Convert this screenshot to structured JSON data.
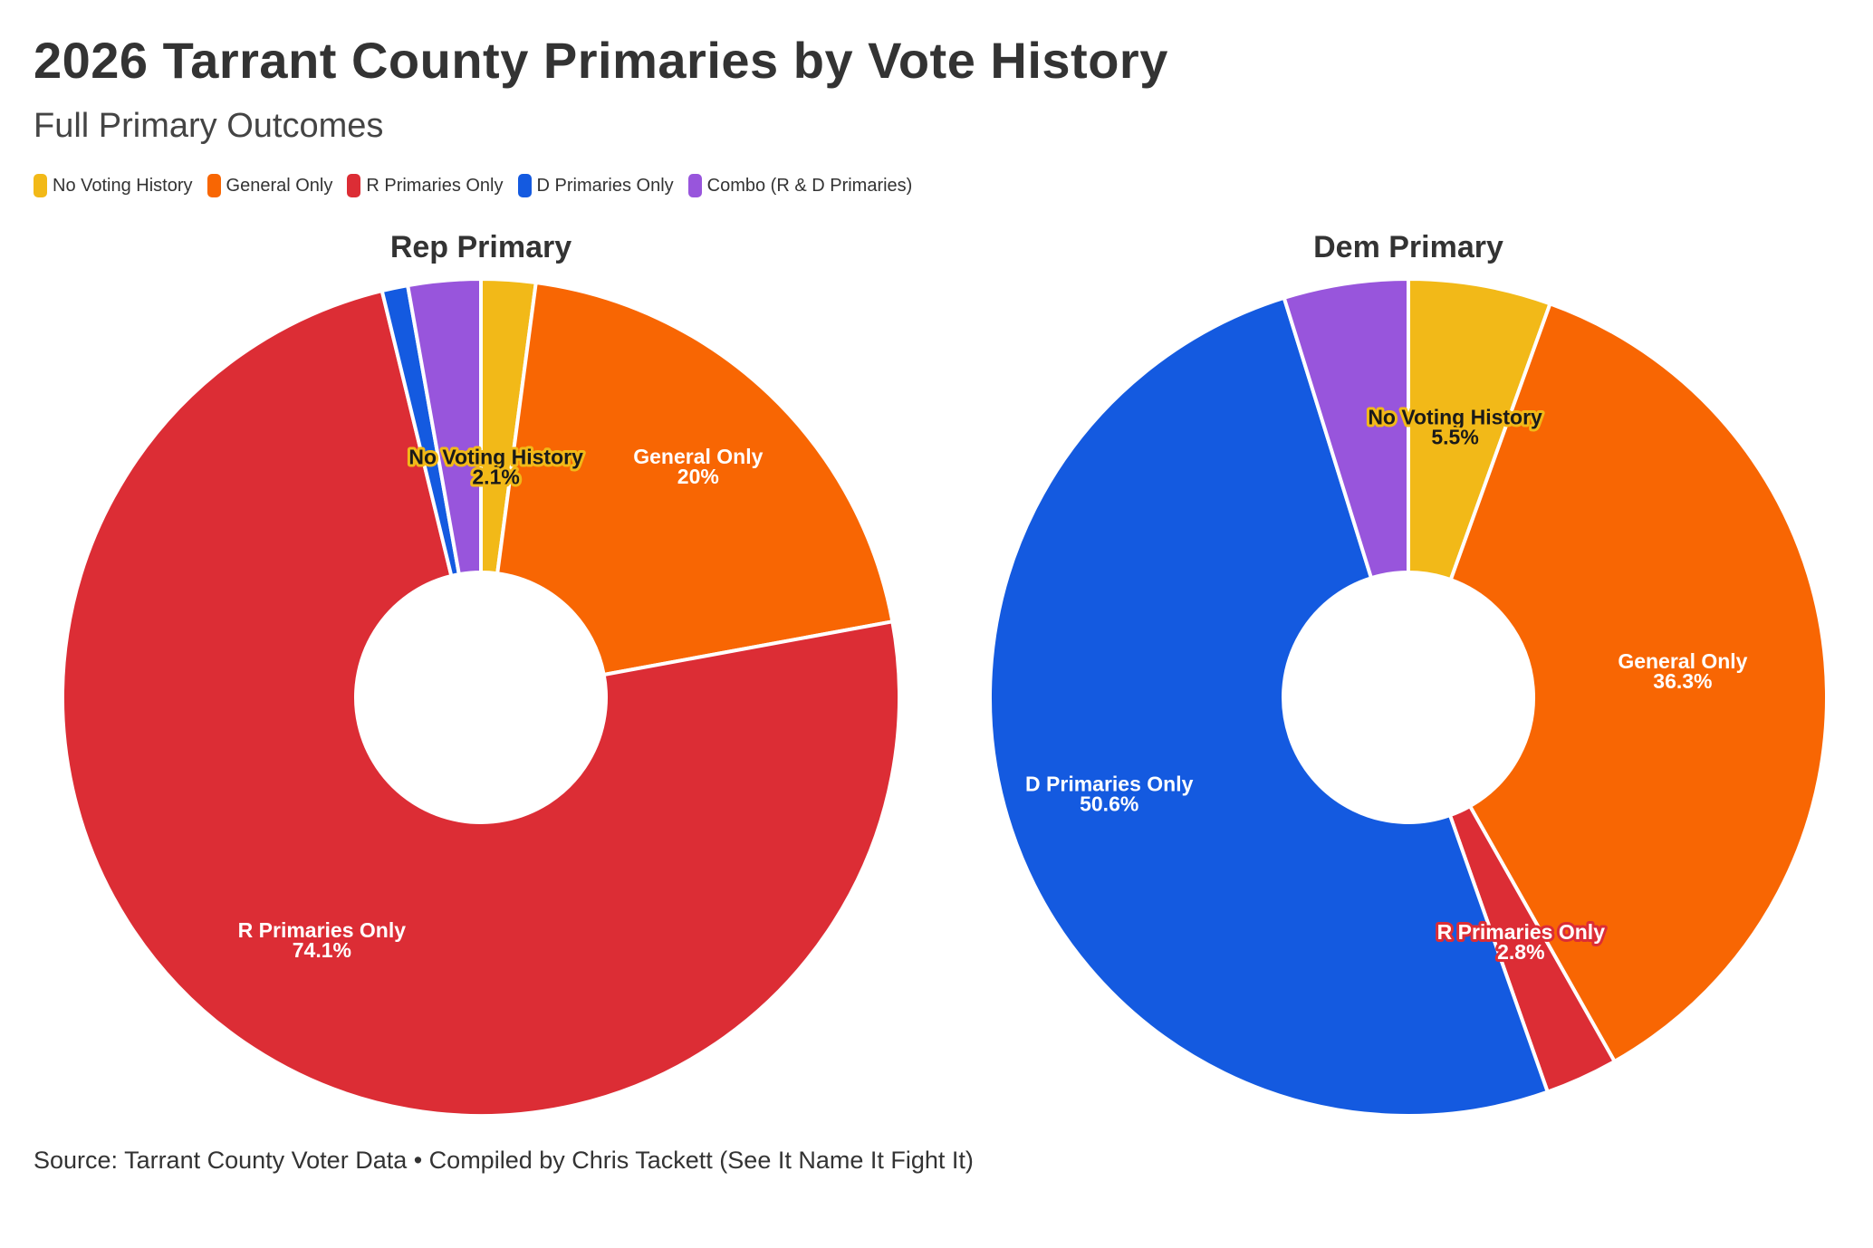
{
  "title": "2026 Tarrant County Primaries by Vote History",
  "subtitle": "Full Primary Outcomes",
  "legend": [
    {
      "label": "No Voting History",
      "color": "#f2b918"
    },
    {
      "label": "General Only",
      "color": "#f86603"
    },
    {
      "label": "R Primaries Only",
      "color": "#dc2d35"
    },
    {
      "label": "D Primaries Only",
      "color": "#145ae0"
    },
    {
      "label": "Combo (R & D Primaries)",
      "color": "#9855dc"
    }
  ],
  "source": "Source: Tarrant County Voter Data • Compiled by Chris Tackett (See It Name It Fight It)",
  "chart_data": [
    {
      "type": "pie",
      "subtype": "donut",
      "title": "Rep Primary",
      "slices": [
        {
          "label": "No Voting History",
          "value": 2.1,
          "display": "2.1%",
          "color": "#f2b918",
          "show_label": true
        },
        {
          "label": "General Only",
          "value": 20,
          "display": "20%",
          "color": "#f86603",
          "show_label": true
        },
        {
          "label": "R Primaries Only",
          "value": 74.1,
          "display": "74.1%",
          "color": "#dc2d35",
          "show_label": true
        },
        {
          "label": "D Primaries Only",
          "value": 1.0,
          "display": "1%",
          "color": "#145ae0",
          "show_label": false
        },
        {
          "label": "Combo (R & D Primaries)",
          "value": 2.8,
          "display": "2.8%",
          "color": "#9855dc",
          "show_label": false
        }
      ]
    },
    {
      "type": "pie",
      "subtype": "donut",
      "title": "Dem Primary",
      "slices": [
        {
          "label": "No Voting History",
          "value": 5.5,
          "display": "5.5%",
          "color": "#f2b918",
          "show_label": true
        },
        {
          "label": "General Only",
          "value": 36.3,
          "display": "36.3%",
          "color": "#f86603",
          "show_label": true
        },
        {
          "label": "R Primaries Only",
          "value": 2.8,
          "display": "2.8%",
          "color": "#dc2d35",
          "show_label": true
        },
        {
          "label": "D Primaries Only",
          "value": 50.6,
          "display": "50.6%",
          "color": "#145ae0",
          "show_label": true
        },
        {
          "label": "Combo (R & D Primaries)",
          "value": 4.8,
          "display": "4.8%",
          "color": "#9855dc",
          "show_label": false
        }
      ]
    }
  ]
}
